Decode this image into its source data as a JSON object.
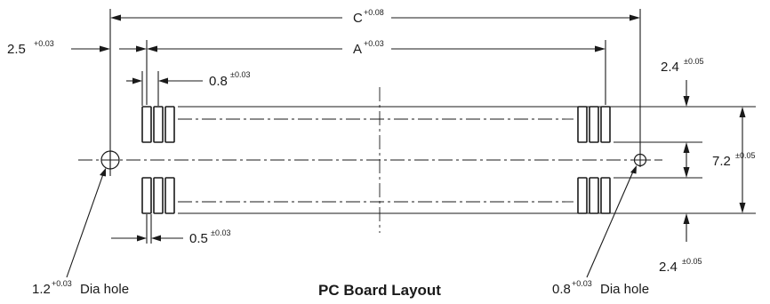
{
  "diagram": {
    "title": "PC Board Layout",
    "dimensions": {
      "c": {
        "value": "C",
        "tol": "+0.08"
      },
      "a": {
        "value": "A",
        "tol": "+0.03"
      },
      "offset": {
        "value": "2.5",
        "tol": "+0.03"
      },
      "pin_width": {
        "value": "0.8",
        "tol": "±0.03"
      },
      "pin_gap": {
        "value": "0.5",
        "tol": "±0.03"
      },
      "row_top": {
        "value": "2.4",
        "tol": "±0.05"
      },
      "row_bottom": {
        "value": "2.4",
        "tol": "±0.05"
      },
      "overall": {
        "value": "7.2",
        "tol": "±0.05"
      }
    },
    "holes": {
      "left": {
        "value": "1.2",
        "tol": "+0.03",
        "label": "Dia hole"
      },
      "right": {
        "value": "0.8",
        "tol": "+0.03",
        "label": "Dia hole"
      }
    }
  }
}
